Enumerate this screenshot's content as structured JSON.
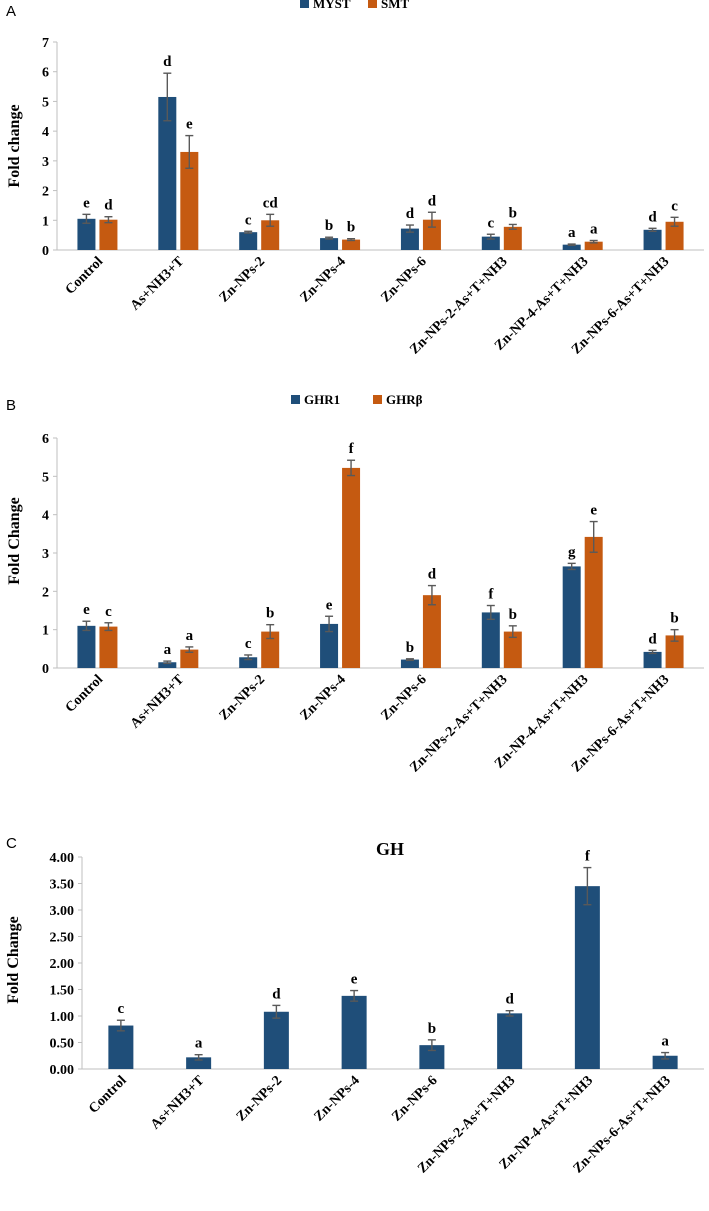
{
  "chart_data": [
    {
      "type": "bar",
      "panel": "A",
      "title": "",
      "ylabel": "Fold change",
      "xlabel": "",
      "ylim": [
        0,
        7
      ],
      "yticks": [
        "0",
        "1",
        "2",
        "3",
        "4",
        "5",
        "6",
        "7"
      ],
      "grid": false,
      "legend": "top-center",
      "categories": [
        "Control",
        "As+NH3+T",
        "Zn-NPs-2",
        "Zn-NPs-4",
        "Zn-NPs-6",
        "Zn-NPs-2-As+T+NH3",
        "Zn-NP-4-As+T+NH3",
        "Zn-NPs-6-As+T+NH3"
      ],
      "series": [
        {
          "name": "MYST",
          "color": "#1f4e79",
          "values": [
            1.05,
            5.15,
            0.6,
            0.4,
            0.72,
            0.45,
            0.18,
            0.68
          ],
          "errors": [
            0.15,
            0.8,
            0.03,
            0.03,
            0.12,
            0.08,
            0.02,
            0.05
          ],
          "labels": [
            "e",
            "d",
            "c",
            "b",
            "d",
            "c",
            "a",
            "d"
          ]
        },
        {
          "name": "SMT",
          "color": "#c55a11",
          "values": [
            1.02,
            3.3,
            1.0,
            0.35,
            1.02,
            0.78,
            0.28,
            0.95
          ],
          "errors": [
            0.1,
            0.55,
            0.2,
            0.03,
            0.25,
            0.08,
            0.04,
            0.15
          ],
          "labels": [
            "d",
            "e",
            "cd",
            "b",
            "d",
            "b",
            "a",
            "c"
          ]
        }
      ]
    },
    {
      "type": "bar",
      "panel": "B",
      "title": "",
      "ylabel": "Fold Change",
      "xlabel": "",
      "ylim": [
        0,
        6
      ],
      "yticks": [
        "0",
        "1",
        "2",
        "3",
        "4",
        "5",
        "6"
      ],
      "grid": false,
      "legend": "top-center",
      "categories": [
        "Control",
        "As+NH3+T",
        "Zn-NPs-2",
        "Zn-NPs-4",
        "Zn-NPs-6",
        "Zn-NPs-2-As+T+NH3",
        "Zn-NP-4-As+T+NH3",
        "Zn-NPs-6-As+T+NH3"
      ],
      "series": [
        {
          "name": "GHR1",
          "color": "#1f4e79",
          "values": [
            1.1,
            0.15,
            0.28,
            1.15,
            0.22,
            1.45,
            2.65,
            0.42
          ],
          "errors": [
            0.12,
            0.03,
            0.06,
            0.2,
            0.02,
            0.18,
            0.08,
            0.04
          ],
          "labels": [
            "e",
            "a",
            "c",
            "e",
            "b",
            "f",
            "g",
            "d"
          ]
        },
        {
          "name": "GHRβ",
          "color": "#c55a11",
          "values": [
            1.08,
            0.48,
            0.95,
            5.22,
            1.9,
            0.95,
            3.42,
            0.85
          ],
          "errors": [
            0.1,
            0.07,
            0.18,
            0.2,
            0.25,
            0.15,
            0.4,
            0.15
          ],
          "labels": [
            "c",
            "a",
            "b",
            "f",
            "d",
            "b",
            "e",
            "b"
          ]
        }
      ]
    },
    {
      "type": "bar",
      "panel": "C",
      "title": "GH",
      "ylabel": "Fold Change",
      "xlabel": "",
      "ylim": [
        0,
        4
      ],
      "yticks": [
        "0.00",
        "0.50",
        "1.00",
        "1.50",
        "2.00",
        "2.50",
        "3.00",
        "3.50",
        "4.00"
      ],
      "grid": false,
      "legend": "none",
      "categories": [
        "Control",
        "As+NH3+T",
        "Zn-NPs-2",
        "Zn-NPs-4",
        "Zn-NPs-6",
        "Zn-NPs-2-As+T+NH3",
        "Zn-NP-4-As+T+NH3",
        "Zn-NPs-6-As+T+NH3"
      ],
      "series": [
        {
          "name": "GH",
          "color": "#1f4e79",
          "values": [
            0.82,
            0.22,
            1.08,
            1.38,
            0.45,
            1.05,
            3.45,
            0.25
          ],
          "errors": [
            0.1,
            0.05,
            0.12,
            0.1,
            0.1,
            0.05,
            0.35,
            0.06
          ],
          "labels": [
            "c",
            "a",
            "d",
            "e",
            "b",
            "d",
            "f",
            "a"
          ]
        }
      ]
    }
  ]
}
